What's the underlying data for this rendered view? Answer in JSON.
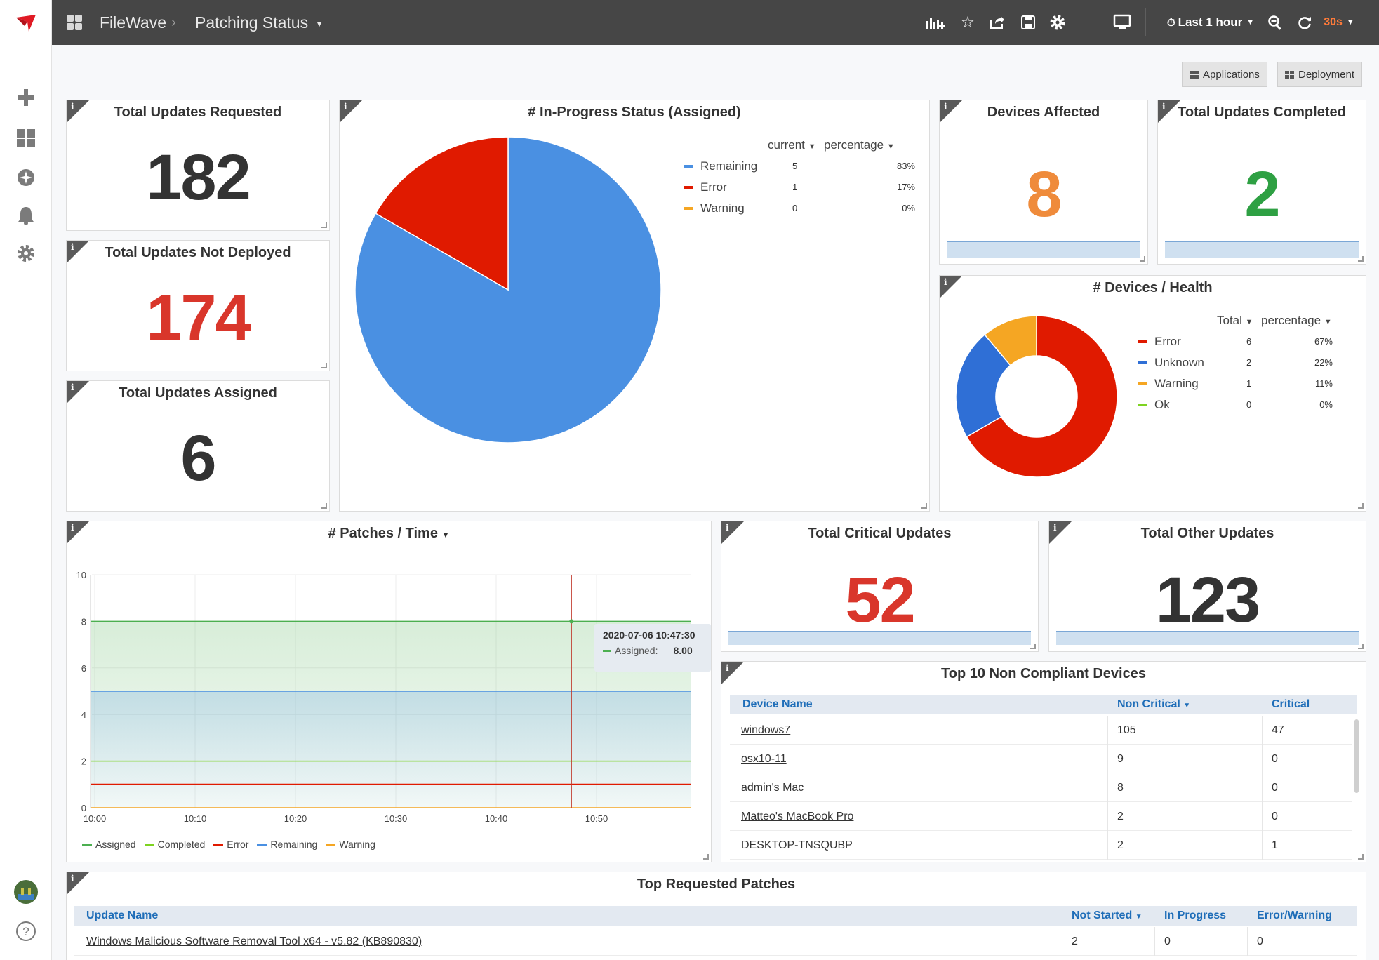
{
  "app": {
    "brand": "FileWave",
    "page_title": "Patching Status",
    "time_range": "Last 1 hour",
    "refresh": "30s"
  },
  "colors": {
    "remaining": "#4a90e2",
    "error": "#e01a00",
    "warning": "#f5a623",
    "ok": "#7ed321",
    "unknown": "#2f6fd6",
    "assigned": "#4caf50",
    "completed": "#7ed321",
    "orange_number": "#ef8b3b",
    "green_number": "#2ea043",
    "red_number": "#d9362b"
  },
  "buttons": {
    "applications": "Applications",
    "deployment": "Deployment"
  },
  "stats": {
    "requested": {
      "title": "Total Updates Requested",
      "value": "182"
    },
    "not_deployed": {
      "title": "Total Updates Not Deployed",
      "value": "174"
    },
    "assigned": {
      "title": "Total Updates Assigned",
      "value": "6"
    },
    "devices_affected": {
      "title": "Devices Affected",
      "value": "8"
    },
    "completed": {
      "title": "Total Updates Completed",
      "value": "2"
    },
    "critical": {
      "title": "Total Critical Updates",
      "value": "52"
    },
    "other": {
      "title": "Total Other Updates",
      "value": "123"
    }
  },
  "pie_status": {
    "title": "# In-Progress Status (Assigned)",
    "col_current": "current",
    "col_percentage": "percentage",
    "rows": [
      {
        "label": "Remaining",
        "current": "5",
        "percentage": "83%"
      },
      {
        "label": "Error",
        "current": "1",
        "percentage": "17%"
      },
      {
        "label": "Warning",
        "current": "0",
        "percentage": "0%"
      }
    ]
  },
  "health": {
    "title": "# Devices / Health",
    "col_total": "Total",
    "col_percentage": "percentage",
    "rows": [
      {
        "label": "Error",
        "total": "6",
        "percentage": "67%"
      },
      {
        "label": "Unknown",
        "total": "2",
        "percentage": "22%"
      },
      {
        "label": "Warning",
        "total": "1",
        "percentage": "11%"
      },
      {
        "label": "Ok",
        "total": "0",
        "percentage": "0%"
      }
    ]
  },
  "time_chart": {
    "title": "# Patches / Time",
    "tooltip": {
      "time": "2020-07-06 10:47:30",
      "series": "Assigned:",
      "value": "8.00"
    },
    "legend": [
      "Assigned",
      "Completed",
      "Error",
      "Remaining",
      "Warning"
    ]
  },
  "chart_data": [
    {
      "type": "pie",
      "title": "# In-Progress Status (Assigned)",
      "labels": [
        "Remaining",
        "Error",
        "Warning"
      ],
      "values": [
        5,
        1,
        0
      ]
    },
    {
      "type": "pie",
      "title": "# Devices / Health",
      "donut": true,
      "labels": [
        "Error",
        "Unknown",
        "Warning",
        "Ok"
      ],
      "values": [
        6,
        2,
        1,
        0
      ]
    },
    {
      "type": "line",
      "title": "# Patches / Time",
      "x": [
        "10:00",
        "10:10",
        "10:20",
        "10:30",
        "10:40",
        "10:50"
      ],
      "ylim": [
        0,
        10
      ],
      "yticks": [
        "0",
        "2",
        "4",
        "6",
        "8",
        "10"
      ],
      "series": [
        {
          "name": "Assigned",
          "values": [
            8,
            8,
            8,
            8,
            8,
            8
          ]
        },
        {
          "name": "Completed",
          "values": [
            2,
            2,
            2,
            2,
            2,
            2
          ]
        },
        {
          "name": "Error",
          "values": [
            1,
            1,
            1,
            1,
            1,
            1
          ]
        },
        {
          "name": "Remaining",
          "values": [
            5,
            5,
            5,
            5,
            5,
            5
          ]
        },
        {
          "name": "Warning",
          "values": [
            0,
            0,
            0,
            0,
            0,
            0
          ]
        }
      ]
    }
  ],
  "top_devices": {
    "title": "Top 10 Non Compliant Devices",
    "columns": [
      "Device Name",
      "Non Critical",
      "Critical"
    ],
    "rows": [
      {
        "name": "windows7",
        "non_critical": "105",
        "critical": "47"
      },
      {
        "name": "osx10-11",
        "non_critical": "9",
        "critical": "0"
      },
      {
        "name": "admin's Mac",
        "non_critical": "8",
        "critical": "0"
      },
      {
        "name": "Matteo's MacBook Pro",
        "non_critical": "2",
        "critical": "0"
      },
      {
        "name": "DESKTOP-TNSQUBP",
        "non_critical": "2",
        "critical": "1"
      }
    ]
  },
  "top_patches": {
    "title": "Top Requested Patches",
    "columns": [
      "Update Name",
      "Not Started",
      "In Progress",
      "Error/Warning"
    ],
    "rows": [
      {
        "name": "Windows Malicious Software Removal Tool x64 - v5.82 (KB890830)",
        "not_started": "2",
        "in_progress": "0",
        "error_warning": "0"
      }
    ]
  }
}
